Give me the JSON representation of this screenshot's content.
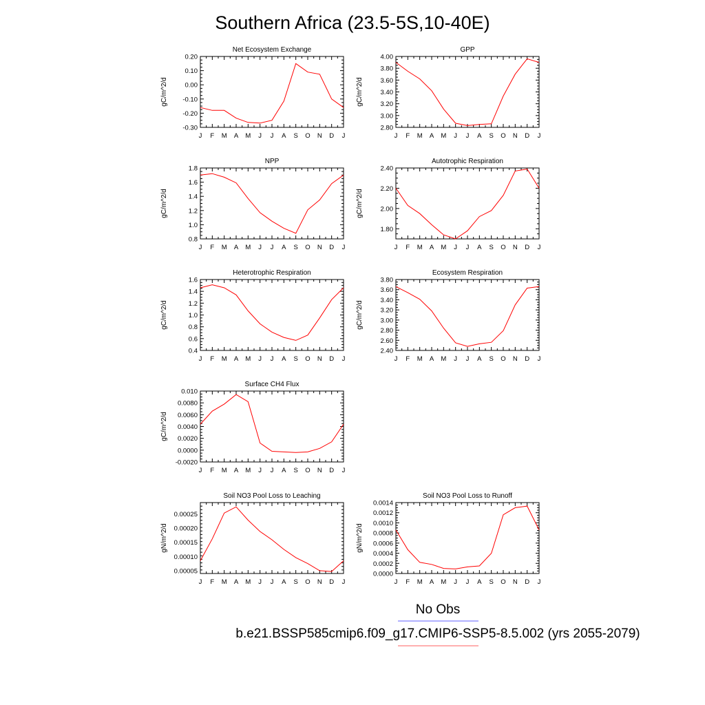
{
  "figure": {
    "title": "Southern Africa (23.5-5S,10-40E)",
    "legend": [
      {
        "label": "No Obs",
        "color": "#7f7fff"
      },
      {
        "label": "b.e21.BSSP585cmip6.f09_g17.CMIP6-SSP5-8.5.002 (yrs 2055-2079)",
        "color": "#ff7f7f"
      }
    ]
  },
  "chart_data": [
    {
      "type": "line",
      "title": "Net Ecosystem Exchange",
      "ylabel": "gC/m^2/d",
      "categories": [
        "J",
        "F",
        "M",
        "A",
        "M",
        "J",
        "J",
        "A",
        "S",
        "O",
        "N",
        "D",
        "J"
      ],
      "ylim": [
        -0.3,
        0.2
      ],
      "yticks": [
        "0.20",
        "0.10",
        "0.00",
        "-0.10",
        "-0.20",
        "-0.30"
      ],
      "yticks_values": [
        0.2,
        0.1,
        0.0,
        -0.1,
        -0.2,
        -0.3
      ],
      "series": [
        {
          "color": "#ff0000",
          "values": [
            -0.16,
            -0.18,
            -0.18,
            -0.235,
            -0.265,
            -0.27,
            -0.25,
            -0.115,
            0.15,
            0.09,
            0.075,
            -0.1,
            -0.16
          ]
        }
      ]
    },
    {
      "type": "line",
      "title": "GPP",
      "ylabel": "gC/m^2/d",
      "categories": [
        "J",
        "F",
        "M",
        "A",
        "M",
        "J",
        "J",
        "A",
        "S",
        "O",
        "N",
        "D",
        "J"
      ],
      "ylim": [
        2.8,
        4.0
      ],
      "yticks": [
        "4.00",
        "3.80",
        "3.60",
        "3.40",
        "3.20",
        "3.00",
        "2.80"
      ],
      "yticks_values": [
        4.0,
        3.8,
        3.6,
        3.4,
        3.2,
        3.0,
        2.8
      ],
      "series": [
        {
          "color": "#ff0000",
          "values": [
            3.9,
            3.75,
            3.62,
            3.42,
            3.11,
            2.87,
            2.83,
            2.85,
            2.86,
            3.33,
            3.7,
            3.96,
            3.9
          ]
        }
      ]
    },
    {
      "type": "line",
      "title": "NPP",
      "ylabel": "gC/m^2/d",
      "categories": [
        "J",
        "F",
        "M",
        "A",
        "M",
        "J",
        "J",
        "A",
        "S",
        "O",
        "N",
        "D",
        "J"
      ],
      "ylim": [
        0.8,
        1.8
      ],
      "yticks": [
        "1.8",
        "1.6",
        "1.4",
        "1.2",
        "1.0",
        "0.8"
      ],
      "yticks_values": [
        1.8,
        1.6,
        1.4,
        1.2,
        1.0,
        0.8
      ],
      "series": [
        {
          "color": "#ff0000",
          "values": [
            1.7,
            1.72,
            1.67,
            1.59,
            1.37,
            1.17,
            1.05,
            0.95,
            0.88,
            1.21,
            1.35,
            1.58,
            1.7
          ]
        }
      ]
    },
    {
      "type": "line",
      "title": "Autotrophic Respiration",
      "ylabel": "gC/m^2/d",
      "categories": [
        "J",
        "F",
        "M",
        "A",
        "M",
        "J",
        "J",
        "A",
        "S",
        "O",
        "N",
        "D",
        "J"
      ],
      "ylim": [
        1.7,
        2.4
      ],
      "yticks": [
        "2.40",
        "2.20",
        "2.00",
        "1.80"
      ],
      "yticks_values": [
        2.4,
        2.2,
        2.0,
        1.8
      ],
      "series": [
        {
          "color": "#ff0000",
          "values": [
            2.2,
            2.03,
            1.95,
            1.84,
            1.74,
            1.7,
            1.78,
            1.92,
            1.98,
            2.13,
            2.37,
            2.39,
            2.2
          ]
        }
      ]
    },
    {
      "type": "line",
      "title": "Heterotrophic Respiration",
      "ylabel": "gC/m^2/d",
      "categories": [
        "J",
        "F",
        "M",
        "A",
        "M",
        "J",
        "J",
        "A",
        "S",
        "O",
        "N",
        "D",
        "J"
      ],
      "ylim": [
        0.4,
        1.6
      ],
      "yticks": [
        "1.6",
        "1.4",
        "1.2",
        "1.0",
        "0.8",
        "0.6",
        "0.4"
      ],
      "yticks_values": [
        1.6,
        1.4,
        1.2,
        1.0,
        0.8,
        0.6,
        0.4
      ],
      "series": [
        {
          "color": "#ff0000",
          "values": [
            1.46,
            1.51,
            1.46,
            1.34,
            1.07,
            0.85,
            0.71,
            0.62,
            0.57,
            0.66,
            0.95,
            1.26,
            1.46
          ]
        }
      ]
    },
    {
      "type": "line",
      "title": "Ecosystem Respiration",
      "ylabel": "gC/m^2/d",
      "categories": [
        "J",
        "F",
        "M",
        "A",
        "M",
        "J",
        "J",
        "A",
        "S",
        "O",
        "N",
        "D",
        "J"
      ],
      "ylim": [
        2.4,
        3.8
      ],
      "yticks": [
        "3.80",
        "3.60",
        "3.40",
        "3.20",
        "3.00",
        "2.80",
        "2.60",
        "2.40"
      ],
      "yticks_values": [
        3.8,
        3.6,
        3.4,
        3.2,
        3.0,
        2.8,
        2.6,
        2.4
      ],
      "series": [
        {
          "color": "#ff0000",
          "values": [
            3.66,
            3.54,
            3.41,
            3.18,
            2.84,
            2.55,
            2.48,
            2.53,
            2.56,
            2.79,
            3.3,
            3.63,
            3.66
          ]
        }
      ]
    },
    {
      "type": "line",
      "title": "Surface CH4 Flux",
      "ylabel": "gC/m^2/d",
      "categories": [
        "J",
        "F",
        "M",
        "A",
        "M",
        "J",
        "J",
        "A",
        "S",
        "O",
        "N",
        "D",
        "J"
      ],
      "ylim": [
        -0.002,
        0.01
      ],
      "yticks": [
        "0.010",
        "0.0080",
        "0.0060",
        "0.0040",
        "0.0020",
        "0.0000",
        "-0.0020"
      ],
      "yticks_values": [
        0.01,
        0.008,
        0.006,
        0.004,
        0.002,
        0.0,
        -0.002
      ],
      "series": [
        {
          "color": "#ff0000",
          "values": [
            0.0044,
            0.0066,
            0.0078,
            0.0094,
            0.0082,
            0.0012,
            -0.0002,
            -0.0003,
            -0.0004,
            -0.0003,
            0.0003,
            0.0014,
            0.0044
          ]
        }
      ]
    },
    {
      "type": "line",
      "title": "Soil NO3 Pool Loss to Leaching",
      "ylabel": "gN/m^2/d",
      "categories": [
        "J",
        "F",
        "M",
        "A",
        "M",
        "J",
        "J",
        "A",
        "S",
        "O",
        "N",
        "D",
        "J"
      ],
      "ylim": [
        4e-05,
        0.00029
      ],
      "yticks": [
        "0.00025",
        "0.00020",
        "0.00015",
        "0.00010",
        "0.00005"
      ],
      "yticks_values": [
        0.00025,
        0.0002,
        0.00015,
        0.0001,
        5e-05
      ],
      "series": [
        {
          "color": "#ff0000",
          "values": [
            8.5e-05,
            0.000162,
            0.000253,
            0.000275,
            0.000228,
            0.000188,
            0.000159,
            0.000125,
            9.6e-05,
            7.5e-05,
            5e-05,
            4.7e-05,
            8.5e-05
          ]
        }
      ]
    },
    {
      "type": "line",
      "title": "Soil NO3 Pool Loss to Runoff",
      "ylabel": "gN/m^2/d",
      "categories": [
        "J",
        "F",
        "M",
        "A",
        "M",
        "J",
        "J",
        "A",
        "S",
        "O",
        "N",
        "D",
        "J"
      ],
      "ylim": [
        0.0,
        0.0014
      ],
      "yticks": [
        "0.0014",
        "0.0012",
        "0.0010",
        "0.0008",
        "0.0006",
        "0.0004",
        "0.0002",
        "0.0000"
      ],
      "yticks_values": [
        0.0014,
        0.0012,
        0.001,
        0.0008,
        0.0006,
        0.0004,
        0.0002,
        0.0
      ],
      "series": [
        {
          "color": "#ff0000",
          "values": [
            0.00086,
            0.00047,
            0.00022,
            0.00018,
            0.0001,
            9e-05,
            0.00013,
            0.00015,
            0.0004,
            0.00116,
            0.0013,
            0.00133,
            0.00086
          ]
        }
      ]
    }
  ]
}
